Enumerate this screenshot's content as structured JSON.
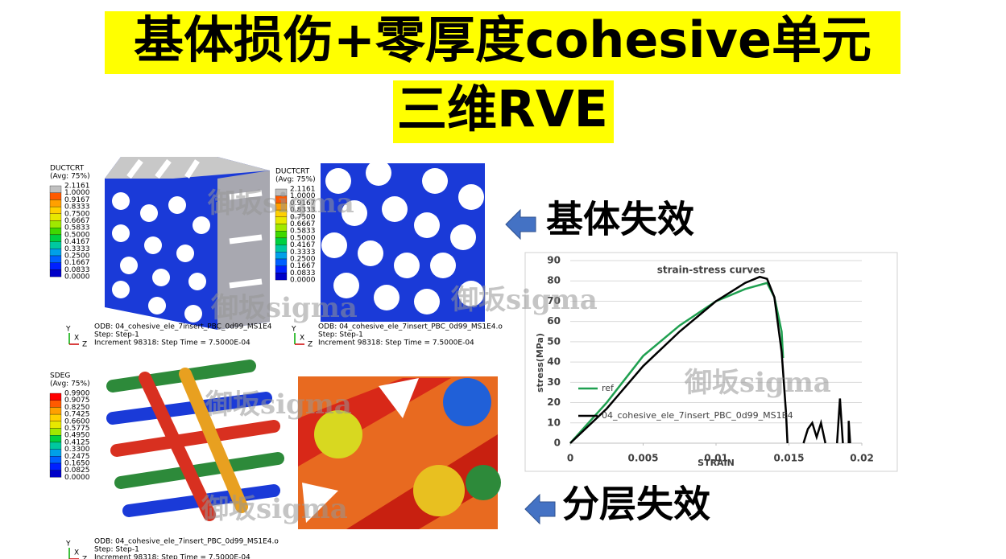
{
  "title_lines": [
    "基体损伤+零厚度cohesive单元",
    "三维RVE"
  ],
  "labels": {
    "matrix_failure": "基体失效",
    "delamination": "分层失效"
  },
  "watermark": "御坂sigma",
  "axes": [
    "Y",
    "X",
    "Z"
  ],
  "contours": [
    {
      "variable": "DUCTCRT",
      "avg": "(Avg: 75%)",
      "levels": [
        "2.1161",
        "1.0000",
        "0.9167",
        "0.8333",
        "0.7500",
        "0.6667",
        "0.5833",
        "0.5000",
        "0.4167",
        "0.3333",
        "0.2500",
        "0.1667",
        "0.0833",
        "0.0000"
      ],
      "odb": "ODB: 04_cohesive_ele_7insert_PBC_0d99_MS1E4",
      "step": "Step: Step-1",
      "increment": "Increment     98318: Step Time =    7.5000E-04"
    },
    {
      "variable": "DUCTCRT",
      "avg": "(Avg: 75%)",
      "levels": [
        "2.1161",
        "1.0000",
        "0.9167",
        "0.8333",
        "0.7500",
        "0.6667",
        "0.5833",
        "0.5000",
        "0.4167",
        "0.3333",
        "0.2500",
        "0.1667",
        "0.0833",
        "0.0000"
      ],
      "odb": "ODB: 04_cohesive_ele_7insert_PBC_0d99_MS1E4.o",
      "step": "Step: Step-1",
      "increment": "Increment     98318: Step Time =    7.5000E-04"
    },
    {
      "variable": "SDEG",
      "avg": "(Avg: 75%)",
      "levels": [
        "0.9900",
        "0.9075",
        "0.8250",
        "0.7425",
        "0.6600",
        "0.5775",
        "0.4950",
        "0.4125",
        "0.3300",
        "0.2475",
        "0.1650",
        "0.0825",
        "0.0000"
      ],
      "odb": "ODB: 04_cohesive_ele_7insert_PBC_0d99_MS1E4.o",
      "step": "Step: Step-1",
      "increment": "Increment     98318: Step Time =    7.5000E-04"
    }
  ],
  "chart_data": {
    "type": "line",
    "title": "strain-stress curves",
    "x_label": "STRAIN",
    "y_label": "stress(MPa)",
    "xlim": [
      0,
      0.02
    ],
    "xticks": [
      0,
      0.005,
      0.01,
      0.015,
      0.02
    ],
    "ylim": [
      0,
      90
    ],
    "yticks": [
      0,
      10,
      20,
      30,
      40,
      50,
      60,
      70,
      80,
      90
    ],
    "grid": true,
    "legend": "center-left",
    "series": [
      {
        "name": "ref",
        "color": "#1fa050",
        "x": [
          0,
          0.0025,
          0.005,
          0.0075,
          0.01,
          0.012,
          0.0135,
          0.014,
          0.0145,
          0.0146
        ],
        "values": [
          0,
          20,
          43,
          58,
          70,
          76,
          79,
          72,
          55,
          42
        ]
      },
      {
        "name": "04_cohesive_ele_7insert_PBC_0d99_MS1E4",
        "color": "#000000",
        "x": [
          0,
          0.0025,
          0.005,
          0.0075,
          0.01,
          0.012,
          0.013,
          0.0135,
          0.014,
          0.0145,
          0.0148,
          0.0149,
          null,
          0.016,
          0.0163,
          0.0166,
          0.0169,
          0.0172,
          0.0175,
          null,
          0.0183,
          0.0185,
          0.0187,
          null,
          0.0191,
          0.0191,
          0.0192
        ],
        "values": [
          0,
          17,
          38,
          55,
          70,
          79,
          82,
          81,
          72,
          45,
          15,
          0,
          null,
          0,
          7,
          10,
          3,
          10,
          0,
          null,
          0,
          22,
          0,
          null,
          0,
          11,
          0
        ]
      }
    ]
  }
}
